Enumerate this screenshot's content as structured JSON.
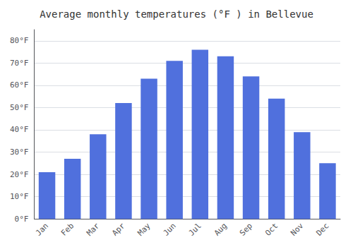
{
  "chart_data": {
    "type": "bar",
    "title": "Average monthly temperatures (°F ) in Bellevue",
    "categories": [
      "Jan",
      "Feb",
      "Mar",
      "Apr",
      "May",
      "Jun",
      "Jul",
      "Aug",
      "Sep",
      "Oct",
      "Nov",
      "Dec"
    ],
    "values": [
      21,
      27,
      38,
      52,
      63,
      71,
      76,
      73,
      64,
      54,
      39,
      25
    ],
    "ylim": [
      0,
      85
    ],
    "yticks": [
      {
        "value": 0,
        "label": "0°F"
      },
      {
        "value": 10,
        "label": "10°F"
      },
      {
        "value": 20,
        "label": "20°F"
      },
      {
        "value": 30,
        "label": "30°F"
      },
      {
        "value": 40,
        "label": "40°F"
      },
      {
        "value": 50,
        "label": "50°F"
      },
      {
        "value": 60,
        "label": "60°F"
      },
      {
        "value": 70,
        "label": "70°F"
      },
      {
        "value": 80,
        "label": "80°F"
      }
    ],
    "grid": true
  }
}
